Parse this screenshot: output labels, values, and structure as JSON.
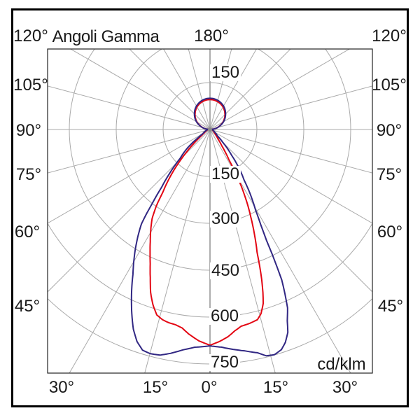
{
  "title": "Angoli Gamma",
  "top_angle_label": "180°",
  "unit_label": "cd/klm",
  "angle_labels": {
    "left": [
      "120°",
      "105°",
      "90°",
      "75°",
      "60°",
      "45°"
    ],
    "right": [
      "120°",
      "105°",
      "90°",
      "75°",
      "60°",
      "45°"
    ],
    "bottom": [
      "30°",
      "15°",
      "0°",
      "15°",
      "30°"
    ]
  },
  "radial_ticks": [
    "150",
    "150",
    "300",
    "450",
    "600",
    "750"
  ],
  "colors": {
    "red_curve": "#e30613",
    "blue_curve": "#312783",
    "grid": "#aaaaaa",
    "center_line": "#999999",
    "plot_border": "#222222",
    "frame": "#000000",
    "text": "#1a1a1a"
  },
  "chart_data": {
    "type": "polar_photometric",
    "title": "Angoli Gamma",
    "unit": "cd/klm",
    "gamma_zero_direction": "down",
    "angle_grid_step_deg": 15,
    "angle_labels_deg": [
      0,
      15,
      30,
      45,
      60,
      75,
      90,
      105,
      120,
      180
    ],
    "radial_rings": [
      150,
      300,
      450,
      600,
      750
    ],
    "radial_max": 780,
    "series": [
      {
        "name": "curve-red",
        "color": "#e30613",
        "back_lobe_max_cd_klm": 96,
        "points_gamma_cd": [
          [
            -90,
            6
          ],
          [
            -80,
            9
          ],
          [
            -70,
            13
          ],
          [
            -60,
            20
          ],
          [
            -55,
            30
          ],
          [
            -52,
            45
          ],
          [
            -49,
            70
          ],
          [
            -46,
            105
          ],
          [
            -43,
            150
          ],
          [
            -40,
            200
          ],
          [
            -37,
            250
          ],
          [
            -35,
            300
          ],
          [
            -33,
            340
          ],
          [
            -30,
            380
          ],
          [
            -28,
            407
          ],
          [
            -26,
            437
          ],
          [
            -24,
            470
          ],
          [
            -22,
            510
          ],
          [
            -20,
            555
          ],
          [
            -18,
            590
          ],
          [
            -16,
            617
          ],
          [
            -14,
            627
          ],
          [
            -12,
            632
          ],
          [
            -10,
            634
          ],
          [
            -8,
            641
          ],
          [
            -6,
            657
          ],
          [
            -3,
            677
          ],
          [
            0,
            690
          ],
          [
            2.5,
            679
          ],
          [
            5,
            665
          ],
          [
            7,
            649
          ],
          [
            9,
            637
          ],
          [
            11.5,
            633
          ],
          [
            14,
            627
          ],
          [
            15.5,
            611
          ],
          [
            17,
            582
          ],
          [
            18,
            548
          ],
          [
            19,
            508
          ],
          [
            20,
            464
          ],
          [
            21,
            420
          ],
          [
            23,
            364
          ],
          [
            25,
            309
          ],
          [
            27,
            258
          ],
          [
            29,
            204
          ],
          [
            30.5,
            159
          ],
          [
            32,
            114
          ],
          [
            36,
            64
          ],
          [
            40,
            40
          ],
          [
            45,
            28
          ],
          [
            50,
            20
          ],
          [
            60,
            14
          ],
          [
            70,
            10
          ],
          [
            80,
            8
          ],
          [
            90,
            6
          ]
        ]
      },
      {
        "name": "curve-blue",
        "color": "#312783",
        "back_lobe_max_cd_klm": 100,
        "points_gamma_cd": [
          [
            -90,
            7
          ],
          [
            -80,
            11
          ],
          [
            -70,
            16
          ],
          [
            -60,
            26
          ],
          [
            -55,
            48
          ],
          [
            -51,
            90
          ],
          [
            -46,
            133
          ],
          [
            -43,
            184
          ],
          [
            -40,
            240
          ],
          [
            -38,
            300
          ],
          [
            -36,
            373
          ],
          [
            -33.5,
            422
          ],
          [
            -31,
            469
          ],
          [
            -28,
            525
          ],
          [
            -25.5,
            583
          ],
          [
            -23,
            640
          ],
          [
            -21,
            684
          ],
          [
            -19,
            717
          ],
          [
            -17,
            738
          ],
          [
            -15,
            742
          ],
          [
            -12.5,
            739
          ],
          [
            -10,
            727
          ],
          [
            -7,
            710
          ],
          [
            -4,
            698
          ],
          [
            0,
            692
          ],
          [
            3,
            697
          ],
          [
            6,
            707
          ],
          [
            9,
            717
          ],
          [
            12,
            730
          ],
          [
            14,
            746
          ],
          [
            16,
            749
          ],
          [
            18,
            740
          ],
          [
            19.5,
            722
          ],
          [
            21,
            695
          ],
          [
            22,
            660
          ],
          [
            23.5,
            622
          ],
          [
            24.5,
            578
          ],
          [
            25.5,
            533
          ],
          [
            26,
            490
          ],
          [
            26.5,
            446
          ],
          [
            27,
            398
          ],
          [
            28,
            347
          ],
          [
            29.5,
            296
          ],
          [
            32,
            242
          ],
          [
            34,
            195
          ],
          [
            37,
            154
          ],
          [
            40,
            108
          ],
          [
            45,
            57
          ],
          [
            50,
            30
          ],
          [
            60,
            18
          ],
          [
            70,
            12
          ],
          [
            80,
            9
          ],
          [
            90,
            7
          ]
        ]
      }
    ]
  }
}
